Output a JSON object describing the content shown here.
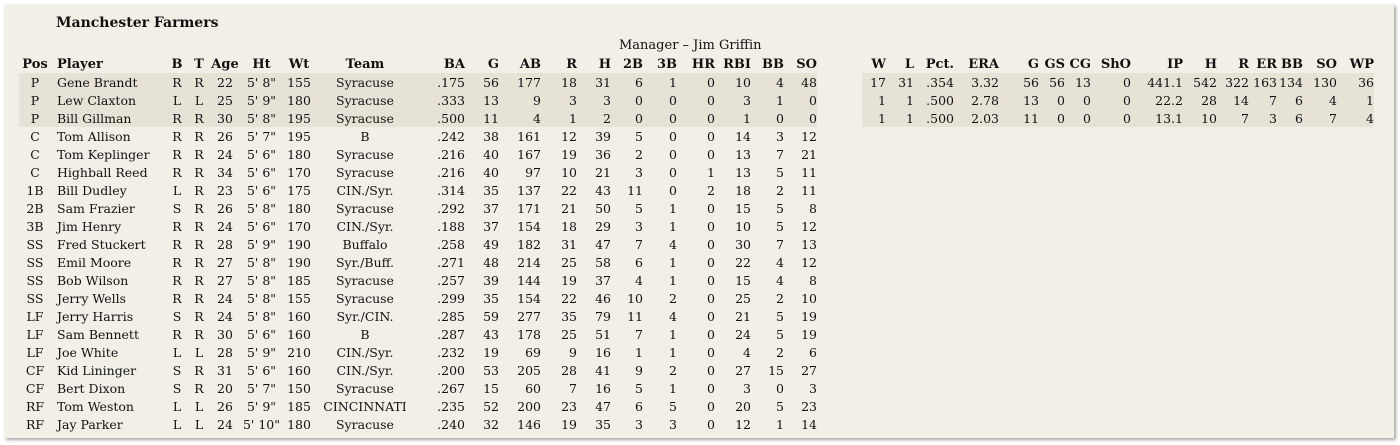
{
  "title": "Manchester Farmers",
  "manager": "Manager – Jim Griffin",
  "batting_headers": [
    "Pos",
    "Player",
    "B",
    "T",
    "Age",
    "Ht",
    "Wt",
    "Team",
    "BA",
    "G",
    "AB",
    "R",
    "H",
    "2B",
    "3B",
    "HR",
    "RBI",
    "BB",
    "SO"
  ],
  "pitching_headers": [
    "W",
    "L",
    "Pct.",
    "ERA",
    "G",
    "GS",
    "CG",
    "ShO",
    "IP",
    "H",
    "R",
    "ER",
    "BB",
    "SO",
    "WP"
  ],
  "batting_rows": [
    [
      "P",
      "Gene Brandt",
      "R",
      "R",
      "22",
      "5' 8\"",
      "155",
      "Syracuse",
      ".175",
      "56",
      "177",
      "18",
      "31",
      "6",
      "1",
      "0",
      "10",
      "4",
      "48"
    ],
    [
      "P",
      "Lew Claxton",
      "L",
      "L",
      "25",
      "5' 9\"",
      "180",
      "Syracuse",
      ".333",
      "13",
      "9",
      "3",
      "3",
      "0",
      "0",
      "0",
      "3",
      "1",
      "0"
    ],
    [
      "P",
      "Bill Gillman",
      "R",
      "R",
      "30",
      "5' 8\"",
      "195",
      "Syracuse",
      ".500",
      "11",
      "4",
      "1",
      "2",
      "0",
      "0",
      "0",
      "1",
      "0",
      "0"
    ],
    [
      "C",
      "Tom Allison",
      "R",
      "R",
      "26",
      "5' 7\"",
      "195",
      "B",
      ".242",
      "38",
      "161",
      "12",
      "39",
      "5",
      "0",
      "0",
      "14",
      "3",
      "12"
    ],
    [
      "C",
      "Tom Keplinger",
      "R",
      "R",
      "24",
      "5' 6\"",
      "180",
      "Syracuse",
      ".216",
      "40",
      "167",
      "19",
      "36",
      "2",
      "0",
      "0",
      "13",
      "7",
      "21"
    ],
    [
      "C",
      "Highball Reed",
      "R",
      "R",
      "34",
      "5' 6\"",
      "170",
      "Syracuse",
      ".216",
      "40",
      "97",
      "10",
      "21",
      "3",
      "0",
      "1",
      "13",
      "5",
      "11"
    ],
    [
      "1B",
      "Bill Dudley",
      "L",
      "R",
      "23",
      "5' 6\"",
      "175",
      "CIN./Syr.",
      ".314",
      "35",
      "137",
      "22",
      "43",
      "11",
      "0",
      "2",
      "18",
      "2",
      "11"
    ],
    [
      "2B",
      "Sam Frazier",
      "S",
      "R",
      "26",
      "5' 8\"",
      "180",
      "Syracuse",
      ".292",
      "37",
      "171",
      "21",
      "50",
      "5",
      "1",
      "0",
      "15",
      "5",
      "8"
    ],
    [
      "3B",
      "Jim Henry",
      "R",
      "R",
      "24",
      "5' 6\"",
      "170",
      "CIN./Syr.",
      ".188",
      "37",
      "154",
      "18",
      "29",
      "3",
      "1",
      "0",
      "10",
      "5",
      "12"
    ],
    [
      "SS",
      "Fred Stuckert",
      "R",
      "R",
      "28",
      "5' 9\"",
      "190",
      "Buffalo",
      ".258",
      "49",
      "182",
      "31",
      "47",
      "7",
      "4",
      "0",
      "30",
      "7",
      "13"
    ],
    [
      "SS",
      "Emil Moore",
      "R",
      "R",
      "27",
      "5' 8\"",
      "190",
      "Syr./Buff.",
      ".271",
      "48",
      "214",
      "25",
      "58",
      "6",
      "1",
      "0",
      "22",
      "4",
      "12"
    ],
    [
      "SS",
      "Bob Wilson",
      "R",
      "R",
      "27",
      "5' 8\"",
      "185",
      "Syracuse",
      ".257",
      "39",
      "144",
      "19",
      "37",
      "4",
      "1",
      "0",
      "15",
      "4",
      "8"
    ],
    [
      "SS",
      "Jerry Wells",
      "R",
      "R",
      "24",
      "5' 8\"",
      "155",
      "Syracuse",
      ".299",
      "35",
      "154",
      "22",
      "46",
      "10",
      "2",
      "0",
      "25",
      "2",
      "10"
    ],
    [
      "LF",
      "Jerry Harris",
      "S",
      "R",
      "24",
      "5' 8\"",
      "160",
      "Syr./CIN.",
      ".285",
      "59",
      "277",
      "35",
      "79",
      "11",
      "4",
      "0",
      "21",
      "5",
      "19"
    ],
    [
      "LF",
      "Sam Bennett",
      "R",
      "R",
      "30",
      "5' 6\"",
      "160",
      "B",
      ".287",
      "43",
      "178",
      "25",
      "51",
      "7",
      "1",
      "0",
      "24",
      "5",
      "19"
    ],
    [
      "LF",
      "Joe White",
      "L",
      "L",
      "28",
      "5' 9\"",
      "210",
      "CIN./Syr.",
      ".232",
      "19",
      "69",
      "9",
      "16",
      "1",
      "1",
      "0",
      "4",
      "2",
      "6"
    ],
    [
      "CF",
      "Kid Lininger",
      "S",
      "R",
      "31",
      "5' 6\"",
      "160",
      "CIN./Syr.",
      ".200",
      "53",
      "205",
      "28",
      "41",
      "9",
      "2",
      "0",
      "27",
      "15",
      "27"
    ],
    [
      "CF",
      "Bert Dixon",
      "S",
      "R",
      "20",
      "5' 7\"",
      "150",
      "Syracuse",
      ".267",
      "15",
      "60",
      "7",
      "16",
      "5",
      "1",
      "0",
      "3",
      "0",
      "3"
    ],
    [
      "RF",
      "Tom Weston",
      "L",
      "L",
      "26",
      "5' 9\"",
      "185",
      "CINCINNATI",
      ".235",
      "52",
      "200",
      "23",
      "47",
      "6",
      "5",
      "0",
      "20",
      "5",
      "23"
    ],
    [
      "RF",
      "Jay Parker",
      "L",
      "L",
      "24",
      "5' 10\"",
      "180",
      "Syracuse",
      ".240",
      "32",
      "146",
      "19",
      "35",
      "3",
      "3",
      "0",
      "12",
      "1",
      "14"
    ]
  ],
  "pitching_rows": [
    [
      "17",
      "31",
      ".354",
      "3.32",
      "56",
      "56",
      "13",
      "0",
      "441.1",
      "542",
      "322",
      "163",
      "134",
      "130",
      "36"
    ],
    [
      "1",
      "1",
      ".500",
      "2.78",
      "13",
      "0",
      "0",
      "0",
      "22.2",
      "28",
      "14",
      "7",
      "6",
      "4",
      "1"
    ],
    [
      "1",
      "1",
      ".500",
      "2.03",
      "11",
      "0",
      "0",
      "0",
      "13.1",
      "10",
      "7",
      "3",
      "6",
      "7",
      "4"
    ]
  ]
}
